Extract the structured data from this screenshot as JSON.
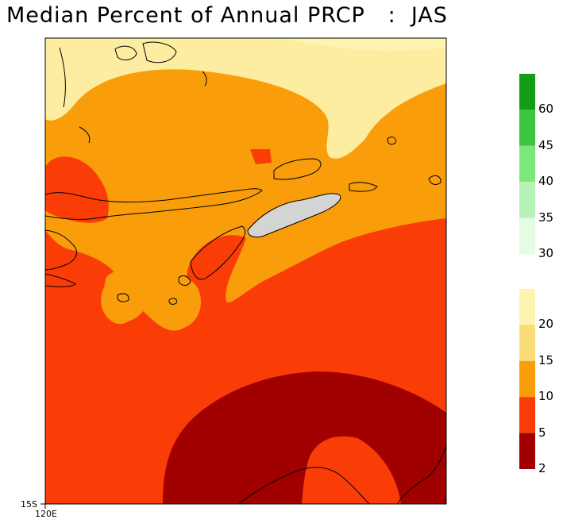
{
  "title": "Median Percent of Annual PRCP   :  JAS",
  "axes": {
    "lat_label": "15S",
    "lon_label": "120E"
  },
  "legend_top": {
    "labels": [
      "60",
      "45",
      "40",
      "35",
      "30"
    ],
    "colors": [
      "#119d18",
      "#3ec540",
      "#7ce87a",
      "#b5f2b5",
      "#e4fbe4"
    ]
  },
  "legend_bottom": {
    "labels": [
      "20",
      "15",
      "10",
      "5",
      "2"
    ],
    "colors": [
      "#fff3b3",
      "#fbdd77",
      "#f99d0a",
      "#fa3d07",
      "#a10000"
    ]
  },
  "map_colors": {
    "pale": "#fdeda0",
    "orange": "#f99d0a",
    "red": "#fa3d07",
    "dark": "#a10000",
    "land_fill": "#d4d4d4",
    "coast": "#000000"
  }
}
